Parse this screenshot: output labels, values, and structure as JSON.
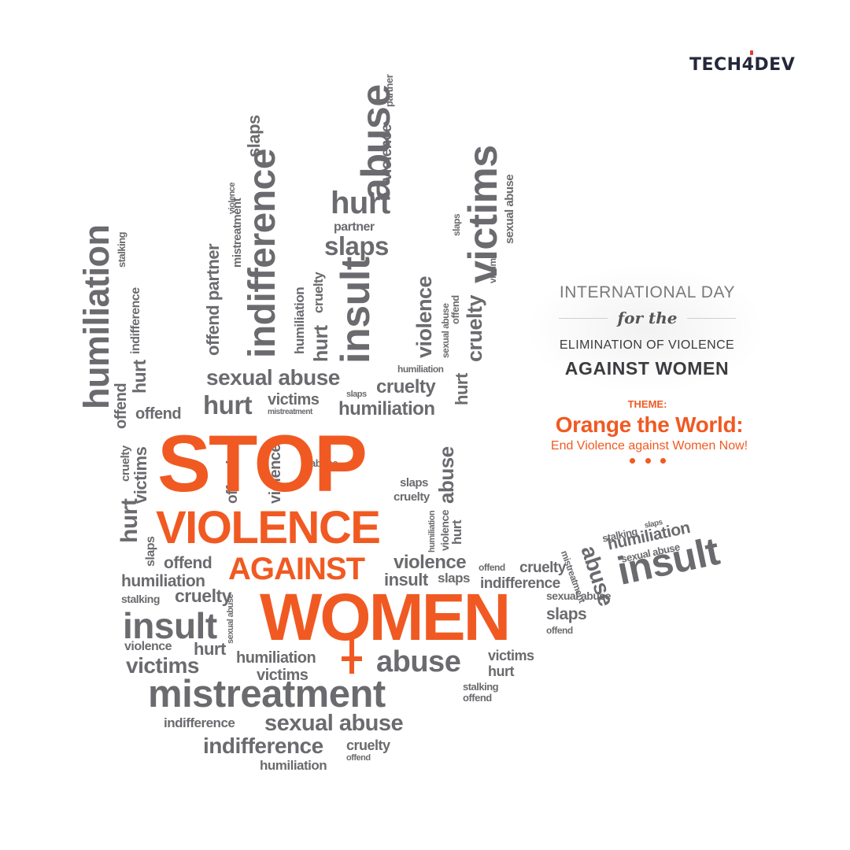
{
  "brand": {
    "logo_text": "TECH4DEV"
  },
  "headline": {
    "stop": "STOP",
    "violence": "VIOLENCE",
    "against": "AGAINST",
    "women": "WOMEN"
  },
  "panel": {
    "line1": "INTERNATIONAL DAY",
    "line2": "for the",
    "line3": "ELIMINATION OF VIOLENCE",
    "line4": "AGAINST WOMEN",
    "theme_label": "THEME:",
    "theme_title": "Orange the World:",
    "theme_subtitle": "End Violence against Women Now!"
  },
  "words": {
    "abuse": "abuse",
    "hurt": "hurt",
    "partner": "partner",
    "violence": "violence",
    "slaps": "slaps",
    "insult": "insult",
    "humiliation": "humiliation",
    "cruelty": "cruelty",
    "victims": "victims",
    "sexual_abuse": "sexual abuse",
    "indifference": "indifference",
    "mistreatment": "mistreatment",
    "offend": "offend",
    "offend_partner": "offend partner",
    "stalking": "stalking"
  },
  "colors": {
    "accent": "#f05a22",
    "word_gray": "#6b6b6f",
    "logo": "#25283a"
  }
}
